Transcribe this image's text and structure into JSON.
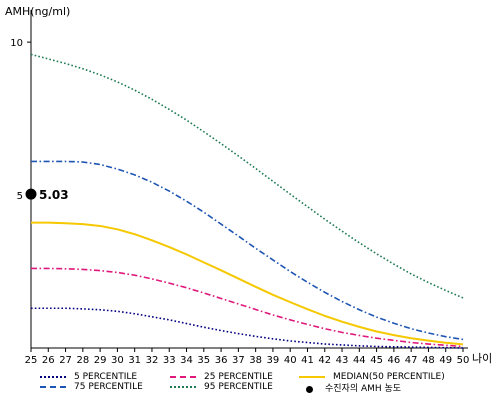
{
  "chart_data": {
    "type": "line",
    "title": "",
    "ylabel": "AMH(ng/ml)",
    "xlabel": "나이",
    "ylim": [
      0,
      11.05
    ],
    "y_ticks": [
      "5",
      "10"
    ],
    "y_tick_values": [
      5,
      10
    ],
    "x": [
      "25",
      "26",
      "27",
      "28",
      "29",
      "30",
      "31",
      "32",
      "33",
      "34",
      "35",
      "36",
      "37",
      "38",
      "39",
      "40",
      "41",
      "42",
      "43",
      "44",
      "45",
      "46",
      "47",
      "48",
      "49",
      "50"
    ],
    "series": [
      {
        "name": "5 PERCENTILE",
        "color": "#000080",
        "style": "dotted",
        "values": [
          1.3,
          1.3,
          1.3,
          1.28,
          1.25,
          1.2,
          1.12,
          1.02,
          0.92,
          0.8,
          0.68,
          0.57,
          0.47,
          0.38,
          0.3,
          0.23,
          0.18,
          0.13,
          0.1,
          0.07,
          0.05,
          0.04,
          0.03,
          0.02,
          0.01,
          0.0
        ]
      },
      {
        "name": "25 PERCENTILE",
        "color": "#e0197d",
        "style": "dashdot",
        "values": [
          2.6,
          2.6,
          2.59,
          2.57,
          2.53,
          2.47,
          2.38,
          2.26,
          2.12,
          1.97,
          1.8,
          1.62,
          1.44,
          1.26,
          1.08,
          0.92,
          0.77,
          0.63,
          0.51,
          0.41,
          0.32,
          0.25,
          0.18,
          0.13,
          0.09,
          0.05
        ]
      },
      {
        "name": "MEDIAN(50 PERCENTILE)",
        "color": "#f5c800",
        "style": "solid",
        "values": [
          4.1,
          4.1,
          4.08,
          4.05,
          3.99,
          3.88,
          3.72,
          3.52,
          3.3,
          3.06,
          2.8,
          2.54,
          2.27,
          2.0,
          1.74,
          1.5,
          1.27,
          1.05,
          0.86,
          0.69,
          0.54,
          0.42,
          0.32,
          0.24,
          0.17,
          0.12
        ]
      },
      {
        "name": "75 PERCENTILE",
        "color": "#1e55b4",
        "style": "dashdot",
        "values": [
          6.1,
          6.1,
          6.1,
          6.08,
          6.0,
          5.85,
          5.66,
          5.42,
          5.13,
          4.8,
          4.44,
          4.05,
          3.66,
          3.26,
          2.88,
          2.5,
          2.15,
          1.82,
          1.52,
          1.25,
          1.01,
          0.81,
          0.63,
          0.49,
          0.37,
          0.28
        ]
      },
      {
        "name": "95 PERCENTILE",
        "color": "#1f7a52",
        "style": "dotted",
        "values": [
          9.6,
          9.45,
          9.3,
          9.13,
          8.93,
          8.7,
          8.43,
          8.13,
          7.8,
          7.45,
          7.07,
          6.68,
          6.28,
          5.87,
          5.45,
          5.03,
          4.62,
          4.21,
          3.82,
          3.44,
          3.08,
          2.74,
          2.42,
          2.14,
          1.88,
          1.64
        ]
      }
    ],
    "annotations": [
      {
        "label": "5.03",
        "x": "25",
        "y": 5.03,
        "marker": "dot",
        "color": "#000000"
      }
    ],
    "legend": {
      "placement": "bottom",
      "items": [
        {
          "label": "5 PERCENTILE",
          "color": "#000080",
          "style": "dotted"
        },
        {
          "label": "25 PERCENTILE",
          "color": "#e0197d",
          "style": "dashdot"
        },
        {
          "label": "MEDIAN(50 PERCENTILE)",
          "color": "#f5c800",
          "style": "solid"
        },
        {
          "label": "75 PERCENTILE",
          "color": "#1e55b4",
          "style": "dashdot"
        },
        {
          "label": "95 PERCENTILE",
          "color": "#1f7a52",
          "style": "dotted"
        },
        {
          "label": "수진자의 AMH 농도",
          "color": "#000000",
          "style": "dot"
        }
      ]
    },
    "grid": false
  }
}
